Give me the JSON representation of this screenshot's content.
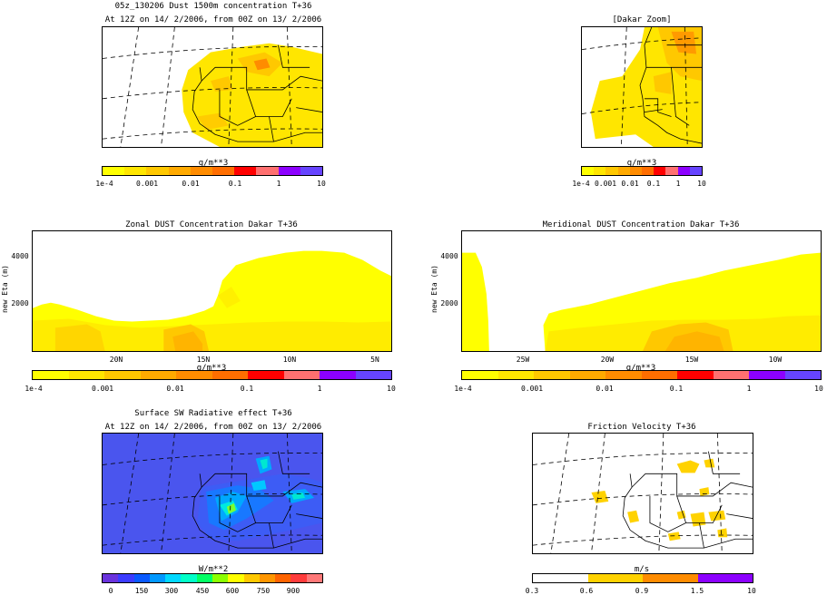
{
  "panel1": {
    "title1": "05z_130206 Dust 1500m concentration T+36",
    "title2": "At 12Z on 14/ 2/2006, from 00Z on 13/ 2/2006",
    "cb_label": "g/m**3",
    "ticks": [
      "1e-4",
      "0.001",
      "0.01",
      "0.1",
      "1",
      "10"
    ]
  },
  "panel2": {
    "title": "[Dakar Zoom]",
    "cb_label": "g/m**3",
    "ticks": [
      "1e-4",
      "0.001",
      "0.01",
      "0.1",
      "1",
      "10"
    ]
  },
  "panel3": {
    "title": "Zonal DUST Concentration Dakar T+36",
    "ylabel": "new Eta (m)",
    "yticks": [
      "4000",
      "2000"
    ],
    "xticks": [
      "20N",
      "15N",
      "10N",
      "5N"
    ],
    "cb_label": "g/m**3",
    "cb_ticks": [
      "1e-4",
      "0.001",
      "0.01",
      "0.1",
      "1",
      "10"
    ]
  },
  "panel4": {
    "title": "Meridional DUST Concentration Dakar T+36",
    "ylabel": "new Eta (m)",
    "yticks": [
      "4000",
      "2000"
    ],
    "xticks": [
      "25W",
      "20W",
      "15W",
      "10W"
    ],
    "cb_label": "g/m**3",
    "cb_ticks": [
      "1e-4",
      "0.001",
      "0.01",
      "0.1",
      "1",
      "10"
    ]
  },
  "panel5": {
    "title1": "Surface SW Radiative effect T+36",
    "title2": "At 12Z on 14/ 2/2006, from 00Z on 13/ 2/2006",
    "cb_label": "W/m**2",
    "ticks": [
      "0",
      "150",
      "300",
      "450",
      "600",
      "750",
      "900"
    ]
  },
  "panel6": {
    "title": "Friction Velocity T+36",
    "cb_label": "m/s",
    "ticks": [
      "0.3",
      "0.6",
      "0.9",
      "1.5",
      "10"
    ]
  },
  "colors": {
    "dust_scale": [
      "#ffff00",
      "#ffe600",
      "#ffc800",
      "#ffaa00",
      "#ff8c00",
      "#ff6e00",
      "#ff0000",
      "#ff7070",
      "#8c00ff",
      "#6644ff"
    ],
    "sw_scale": [
      "#6a33dd",
      "#3c3cff",
      "#0a5aff",
      "#0098ff",
      "#00d8ff",
      "#00ffc8",
      "#00ff64",
      "#8cff00",
      "#ffff00",
      "#ffc800",
      "#ff9600",
      "#ff6400",
      "#ff3c3c",
      "#ff7878"
    ],
    "ustar_scale": [
      "#ffffff",
      "#ffffff",
      "#ffd200",
      "#ffd200",
      "#ff8c00",
      "#ff8c00",
      "#8c00ff",
      "#8c00ff"
    ],
    "sw_background": "#4a55ee"
  },
  "chart_data": [
    {
      "type": "heatmap",
      "title": "05z_130206 Dust 1500m concentration T+36",
      "subtitle": "At 12Z on 14/ 2/2006, from 00Z on 13/ 2/2006",
      "colorbar_label": "g/m**3",
      "colorbar_ticks": [
        "1e-4",
        "0.001",
        "0.01",
        "0.1",
        "1",
        "10"
      ]
    },
    {
      "type": "heatmap",
      "title": "[Dakar Zoom]",
      "colorbar_label": "g/m**3",
      "colorbar_ticks": [
        "1e-4",
        "0.001",
        "0.01",
        "0.1",
        "1",
        "10"
      ]
    },
    {
      "type": "heatmap",
      "title": "Zonal DUST Concentration Dakar T+36",
      "ylabel": "new Eta (m)",
      "yticks": [
        2000,
        4000
      ],
      "xticks": [
        "20N",
        "15N",
        "10N",
        "5N"
      ],
      "colorbar_label": "g/m**3",
      "colorbar_ticks": [
        "1e-4",
        "0.001",
        "0.01",
        "0.1",
        "1",
        "10"
      ]
    },
    {
      "type": "heatmap",
      "title": "Meridional DUST Concentration Dakar T+36",
      "ylabel": "new Eta (m)",
      "yticks": [
        2000,
        4000
      ],
      "xticks": [
        "25W",
        "20W",
        "15W",
        "10W"
      ],
      "colorbar_label": "g/m**3",
      "colorbar_ticks": [
        "1e-4",
        "0.001",
        "0.01",
        "0.1",
        "1",
        "10"
      ]
    },
    {
      "type": "heatmap",
      "title": "Surface SW Radiative effect T+36",
      "subtitle": "At 12Z on 14/ 2/2006, from 00Z on 13/ 2/2006",
      "colorbar_label": "W/m**2",
      "colorbar_ticks": [
        0,
        150,
        300,
        450,
        600,
        750,
        900
      ]
    },
    {
      "type": "heatmap",
      "title": "Friction Velocity T+36",
      "colorbar_label": "m/s",
      "colorbar_ticks": [
        0.3,
        0.6,
        0.9,
        1.5,
        10
      ]
    }
  ]
}
